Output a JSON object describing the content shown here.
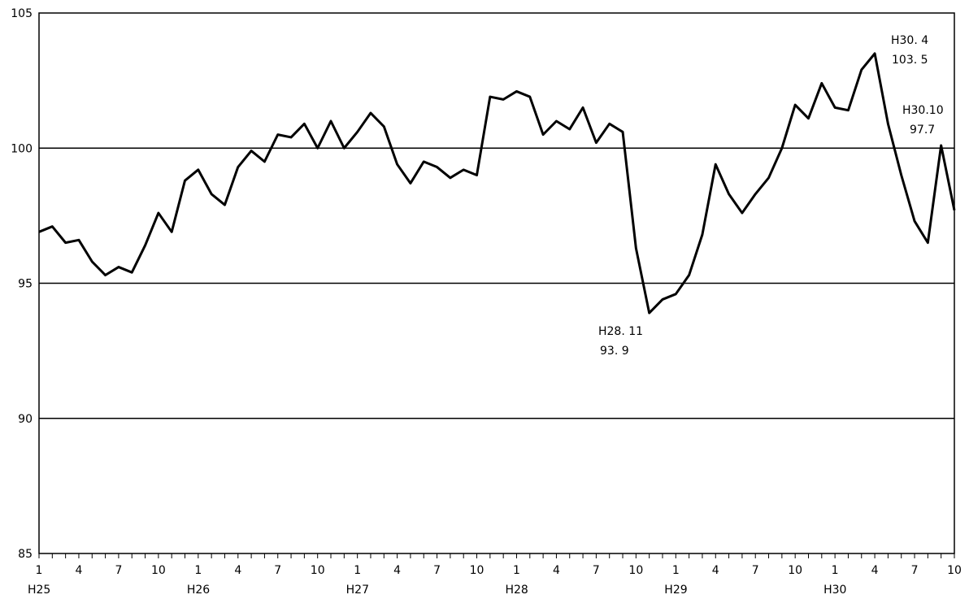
{
  "chart_data": {
    "type": "line",
    "title": "",
    "xlabel": "",
    "ylabel": "",
    "ylim": [
      85,
      105
    ],
    "yticks": [
      "105",
      "100",
      "95",
      "90",
      "85"
    ],
    "grid_y": [
      90,
      95,
      100
    ],
    "month_labels": [
      "1",
      "4",
      "7",
      "10"
    ],
    "year_labels": [
      "H25",
      "H26",
      "H27",
      "H28",
      "H29",
      "H30"
    ],
    "x_range": {
      "start": "H25.1",
      "end": "H30.10"
    },
    "series": [
      {
        "values": [
          96.9,
          97.1,
          96.5,
          96.6,
          95.8,
          95.3,
          95.6,
          95.4,
          96.4,
          97.6,
          96.9,
          98.8,
          99.2,
          98.3,
          97.9,
          99.3,
          99.9,
          99.5,
          100.5,
          100.4,
          100.9,
          100.0,
          101.0,
          100.0,
          100.6,
          101.3,
          100.8,
          99.4,
          98.7,
          99.5,
          99.3,
          98.9,
          99.2,
          99.0,
          101.9,
          101.8,
          102.1,
          101.9,
          100.5,
          101.0,
          100.7,
          101.5,
          100.2,
          100.9,
          100.6,
          96.3,
          93.9,
          94.4,
          94.6,
          95.3,
          96.8,
          99.4,
          98.3,
          97.6,
          98.3,
          98.9,
          100.0,
          101.6,
          101.1,
          102.4,
          101.5,
          101.4,
          102.9,
          103.5,
          100.9,
          99.0,
          97.3,
          96.5,
          100.1,
          97.7
        ]
      }
    ],
    "annotations": [
      {
        "line1": "H30. 4",
        "line2": "103. 5"
      },
      {
        "line1": "H30.10",
        "line2": "97.7"
      },
      {
        "line1": "H28. 11",
        "line2": "93. 9"
      }
    ]
  }
}
